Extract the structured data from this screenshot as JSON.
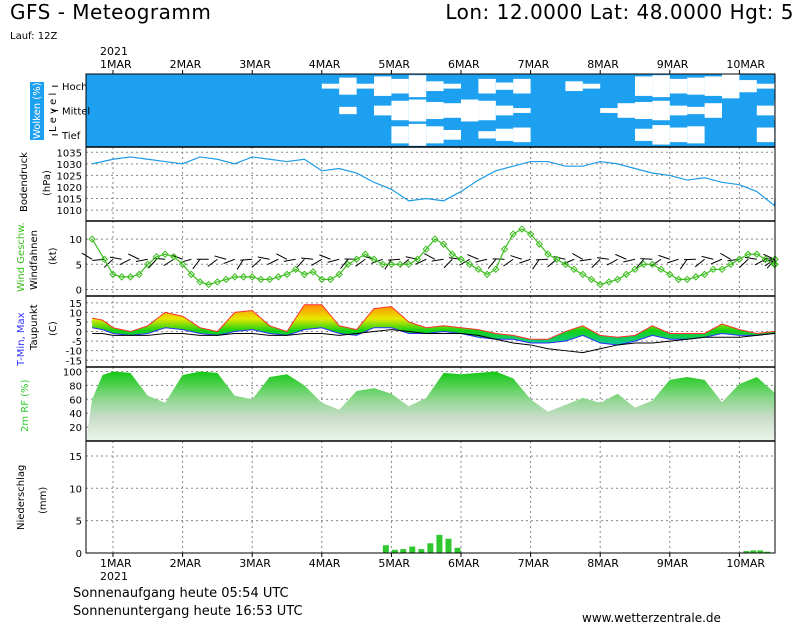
{
  "header": {
    "title": "GFS - Meteogramm",
    "location": "Lon: 12.0000 Lat: 48.0000 Hgt: 5",
    "run": "Lauf: 12Z"
  },
  "footer": {
    "sunrise": "Sonnenaufgang heute 05:54 UTC",
    "sunset": "Sonnenuntergang heute 16:53 UTC",
    "site": "www.wetterzentrale.de"
  },
  "time_axis": {
    "year": "2021",
    "days": [
      "1MAR",
      "2MAR",
      "3MAR",
      "4MAR",
      "5MAR",
      "6MAR",
      "7MAR",
      "8MAR",
      "9MAR",
      "10MAR"
    ]
  },
  "colors": {
    "cloud_sky": "#1ea0f0",
    "pressure_line": "#1e9be6",
    "wind_line": "#3cbe1e",
    "humidity_fill": "#2ecc2e",
    "precip_bar": "#2ec82e",
    "temp_max": "#ff3030",
    "temp_min": "#3030ff",
    "dewpoint": "#000000"
  },
  "chart_data": [
    {
      "type": "area",
      "panel": "clouds",
      "ylabel": "Wolken (%)",
      "ylabel2": "L e v e l",
      "categories": [
        "Hoch",
        "Mittel",
        "Tief"
      ],
      "x_unit": "days since 1 MAR 00Z",
      "series": [
        {
          "name": "Hoch",
          "x": [
            0,
            0.5,
            1,
            1.5,
            2,
            2.5,
            3,
            3.25,
            3.5,
            3.75,
            4,
            4.25,
            4.5,
            4.75,
            5,
            5.25,
            5.5,
            5.75,
            6,
            6.25,
            6.5,
            6.75,
            7,
            7.25,
            7.5,
            7.75,
            8,
            8.25,
            8.5,
            8.75,
            9,
            9.25,
            9.5,
            9.75
          ],
          "values": [
            0,
            0,
            0,
            0,
            0,
            0,
            20,
            70,
            20,
            80,
            60,
            90,
            40,
            20,
            0,
            60,
            30,
            60,
            0,
            0,
            40,
            20,
            0,
            0,
            80,
            90,
            60,
            70,
            80,
            100,
            50,
            20,
            30,
            20
          ]
        },
        {
          "name": "Mittel",
          "x": [
            0,
            0.5,
            1,
            1.5,
            2,
            2.5,
            3,
            3.25,
            3.5,
            3.75,
            4,
            4.25,
            4.5,
            4.75,
            5,
            5.25,
            5.5,
            5.75,
            6,
            6.25,
            6.5,
            6.75,
            7,
            7.25,
            7.5,
            7.75,
            8,
            8.25,
            8.5,
            8.75,
            9,
            9.25,
            9.5,
            9.75
          ],
          "values": [
            0,
            0,
            0,
            0,
            0,
            0,
            0,
            30,
            0,
            40,
            80,
            90,
            70,
            60,
            90,
            80,
            40,
            20,
            0,
            0,
            0,
            0,
            20,
            60,
            70,
            80,
            40,
            30,
            60,
            0,
            0,
            40,
            80,
            30
          ]
        },
        {
          "name": "Tief",
          "x": [
            0,
            0.5,
            1,
            1.5,
            2,
            2.5,
            3,
            3.25,
            3.5,
            3.75,
            4,
            4.25,
            4.5,
            4.75,
            5,
            5.25,
            5.5,
            5.75,
            6,
            6.25,
            6.5,
            6.75,
            7,
            7.25,
            7.5,
            7.75,
            8,
            8.25,
            8.5,
            8.75,
            9,
            9.25,
            9.5,
            9.75
          ],
          "values": [
            0,
            0,
            0,
            0,
            0,
            0,
            0,
            0,
            0,
            0,
            70,
            90,
            70,
            40,
            0,
            30,
            50,
            60,
            0,
            0,
            0,
            0,
            0,
            0,
            50,
            80,
            60,
            70,
            0,
            0,
            0,
            60,
            30,
            0
          ]
        }
      ]
    },
    {
      "type": "line",
      "panel": "pressure",
      "ylabel": "Bodendruck",
      "unit": "(hPa)",
      "ylim": [
        1007,
        1036
      ],
      "yticks": [
        1010,
        1015,
        1020,
        1025,
        1030,
        1035
      ],
      "x": [
        -0.3,
        0,
        0.25,
        0.5,
        0.75,
        1,
        1.25,
        1.5,
        1.75,
        2,
        2.25,
        2.5,
        2.75,
        3,
        3.25,
        3.5,
        3.75,
        4,
        4.25,
        4.5,
        4.75,
        5,
        5.25,
        5.5,
        5.75,
        6,
        6.25,
        6.5,
        6.75,
        7,
        7.25,
        7.5,
        7.75,
        8,
        8.25,
        8.5,
        8.75,
        9,
        9.25,
        9.5,
        9.75,
        9.95
      ],
      "series": [
        {
          "values": [
            1030,
            1032,
            1033,
            1032,
            1031,
            1030,
            1033,
            1032,
            1030,
            1033,
            1032,
            1031,
            1032,
            1027,
            1028,
            1026,
            1022,
            1019,
            1014,
            1015,
            1014,
            1018,
            1023,
            1027,
            1029,
            1031,
            1031,
            1029,
            1029,
            1031,
            1030,
            1028,
            1026,
            1025,
            1023,
            1024,
            1022,
            1021,
            1018,
            1012,
            1014,
            1015
          ]
        }
      ]
    },
    {
      "type": "line",
      "panel": "wind",
      "ylabel": "Wind Geschw.",
      "ylabel2": "Windfahnen",
      "unit": "(kt)",
      "ylim": [
        -0.5,
        13
      ],
      "yticks": [
        0,
        5,
        10
      ],
      "x": [
        -0.3,
        -0.125,
        0,
        0.125,
        0.25,
        0.375,
        0.5,
        0.625,
        0.75,
        0.875,
        1,
        1.125,
        1.25,
        1.375,
        1.5,
        1.625,
        1.75,
        1.875,
        2,
        2.125,
        2.25,
        2.375,
        2.5,
        2.625,
        2.75,
        2.875,
        3,
        3.125,
        3.25,
        3.375,
        3.5,
        3.625,
        3.75,
        3.875,
        4,
        4.125,
        4.25,
        4.375,
        4.5,
        4.625,
        4.75,
        4.875,
        5,
        5.125,
        5.25,
        5.375,
        5.5,
        5.625,
        5.75,
        5.875,
        6,
        6.125,
        6.25,
        6.375,
        6.5,
        6.625,
        6.75,
        6.875,
        7,
        7.125,
        7.25,
        7.375,
        7.5,
        7.625,
        7.75,
        7.875,
        8,
        8.125,
        8.25,
        8.375,
        8.5,
        8.625,
        8.75,
        8.875,
        9,
        9.125,
        9.25,
        9.375,
        9.5,
        9.625,
        9.75,
        9.875,
        9.95
      ],
      "series": [
        {
          "values": [
            10,
            6,
            3,
            2.5,
            2.5,
            3,
            5,
            6.5,
            7,
            6.5,
            5,
            3,
            1.5,
            1,
            1.5,
            2,
            2.5,
            2.5,
            2.5,
            2,
            2,
            2.5,
            3,
            4,
            3,
            3.5,
            2,
            2,
            3,
            5,
            6,
            7,
            6,
            5,
            5,
            5,
            5,
            6,
            8,
            10,
            9,
            7,
            6,
            5,
            4,
            3,
            4,
            8,
            11,
            12,
            11,
            9,
            7,
            6,
            5,
            4,
            3,
            2,
            1,
            1.5,
            2,
            3,
            4,
            5,
            5,
            4,
            3,
            2,
            2,
            2.5,
            3,
            4,
            4,
            5,
            6,
            7,
            7,
            6,
            5,
            5,
            6,
            5,
            6
          ]
        }
      ]
    },
    {
      "type": "line",
      "panel": "temperature",
      "ylabel": "T-Min, Max",
      "ylabel2": "Taupunkt",
      "unit": "(C)",
      "ylim": [
        -18,
        17
      ],
      "yticks": [
        -15,
        -10,
        -5,
        0,
        5,
        10,
        15
      ],
      "x": [
        -0.3,
        -0.15,
        0,
        0.25,
        0.5,
        0.75,
        1,
        1.25,
        1.5,
        1.75,
        2,
        2.25,
        2.5,
        2.75,
        3,
        3.25,
        3.5,
        3.75,
        4,
        4.25,
        4.5,
        4.75,
        5,
        5.25,
        5.5,
        5.75,
        6,
        6.25,
        6.5,
        6.75,
        7,
        7.25,
        7.5,
        7.75,
        8,
        8.25,
        8.5,
        8.75,
        9,
        9.25,
        9.5,
        9.75,
        9.95
      ],
      "series": [
        {
          "name": "Max",
          "values": [
            7,
            6,
            2,
            0,
            3,
            10,
            8,
            2,
            0,
            10,
            11,
            3,
            0,
            14,
            14,
            3,
            1,
            12,
            13,
            5,
            2,
            3,
            2,
            1,
            -1,
            -2,
            -4,
            -4,
            0,
            3,
            -2,
            -3,
            -2,
            3,
            -1,
            -1,
            -1,
            4,
            1,
            -1,
            0,
            0,
            5
          ]
        },
        {
          "name": "Min",
          "values": [
            2,
            1,
            -1,
            -2,
            -1,
            2,
            1,
            -1,
            -2,
            0,
            1,
            -1,
            -2,
            1,
            2,
            -1,
            -2,
            2,
            2,
            -1,
            -1,
            0,
            -1,
            -3,
            -4,
            -4,
            -6,
            -6,
            -5,
            -2,
            -6,
            -7,
            -5,
            -2,
            -4,
            -4,
            -3,
            -1,
            -2,
            -2,
            -1,
            -1,
            0
          ]
        },
        {
          "name": "Taupunkt",
          "values": [
            -1,
            -1,
            -2,
            -2,
            -2,
            -1,
            -1,
            -2,
            -2,
            -1,
            -1,
            -2,
            -2,
            -1,
            -1,
            -2,
            -1,
            0,
            1,
            0,
            -1,
            -1,
            -1,
            -2,
            -4,
            -6,
            -7,
            -9,
            -10,
            -11,
            -9,
            -7,
            -6,
            -6,
            -5,
            -4,
            -3,
            -3,
            -3,
            -2,
            -1,
            -1,
            -1
          ]
        }
      ]
    },
    {
      "type": "area",
      "panel": "humidity",
      "ylabel": "2m RF (%)",
      "ylim": [
        0,
        105
      ],
      "yticks": [
        20,
        40,
        60,
        80,
        100
      ],
      "x": [
        -0.3,
        -0.15,
        0,
        0.25,
        0.5,
        0.75,
        1,
        1.25,
        1.5,
        1.75,
        2,
        2.25,
        2.5,
        2.75,
        3,
        3.25,
        3.5,
        3.75,
        4,
        4.25,
        4.5,
        4.75,
        5,
        5.25,
        5.5,
        5.75,
        6,
        6.25,
        6.5,
        6.75,
        7,
        7.25,
        7.5,
        7.75,
        8,
        8.25,
        8.5,
        8.75,
        9,
        9.25,
        9.5,
        9.75,
        9.95
      ],
      "series": [
        {
          "values": [
            60,
            95,
            100,
            98,
            65,
            55,
            95,
            100,
            98,
            65,
            60,
            92,
            96,
            80,
            55,
            45,
            72,
            76,
            68,
            50,
            62,
            98,
            96,
            98,
            100,
            90,
            60,
            42,
            52,
            62,
            55,
            68,
            48,
            58,
            88,
            92,
            88,
            56,
            82,
            92,
            70,
            100,
            100
          ]
        }
      ]
    },
    {
      "type": "bar",
      "panel": "precipitation",
      "ylabel": "Niederschlag",
      "unit": "(mm)",
      "ylim": [
        0,
        17
      ],
      "yticks": [
        0,
        5,
        10,
        15
      ],
      "x": [
        3.92,
        4.05,
        4.17,
        4.3,
        4.43,
        4.56,
        4.69,
        4.82,
        4.95,
        9.1,
        9.2,
        9.3,
        9.4
      ],
      "series": [
        {
          "values": [
            1.2,
            0.5,
            0.6,
            1.0,
            0.6,
            1.5,
            2.8,
            2.2,
            0.8,
            0.3,
            0.4,
            0.4,
            0.2
          ]
        }
      ]
    }
  ]
}
